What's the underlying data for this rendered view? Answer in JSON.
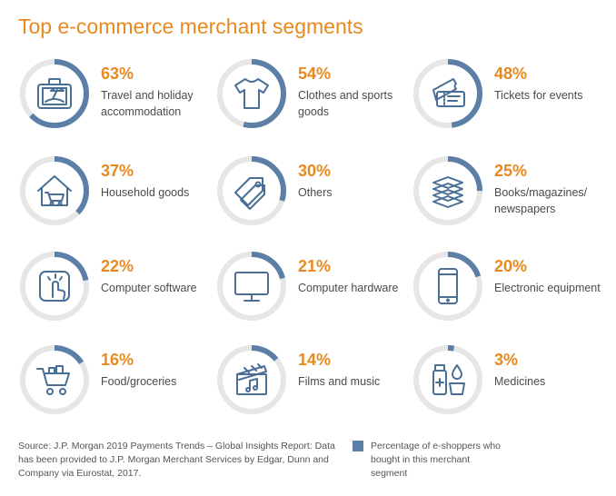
{
  "title": "Top e-commerce merchant segments",
  "colors": {
    "accent": "#e8891f",
    "ring_fill": "#5b7fa6",
    "ring_track": "#e6e6e6",
    "icon": "#4a6f96"
  },
  "chart_data": {
    "type": "pie",
    "title": "Top e-commerce merchant segments",
    "unit": "%",
    "segments": [
      {
        "value": 63,
        "label": "63%",
        "name": "Travel and holiday accommodation",
        "icon": "suitcase-icon"
      },
      {
        "value": 54,
        "label": "54%",
        "name": "Clothes and sports goods",
        "icon": "tshirt-icon"
      },
      {
        "value": 48,
        "label": "48%",
        "name": "Tickets for events",
        "icon": "ticket-icon"
      },
      {
        "value": 37,
        "label": "37%",
        "name": "Household goods",
        "icon": "house-cart-icon"
      },
      {
        "value": 30,
        "label": "30%",
        "name": "Others",
        "icon": "price-tag-icon"
      },
      {
        "value": 25,
        "label": "25%",
        "name": "Books/magazines/ newspapers",
        "icon": "books-icon"
      },
      {
        "value": 22,
        "label": "22%",
        "name": "Computer software",
        "icon": "touch-tap-icon"
      },
      {
        "value": 21,
        "label": "21%",
        "name": "Computer hardware",
        "icon": "monitor-icon"
      },
      {
        "value": 20,
        "label": "20%",
        "name": "Electronic equipment",
        "icon": "smartphone-icon"
      },
      {
        "value": 16,
        "label": "16%",
        "name": "Food/groceries",
        "icon": "shopping-cart-icon"
      },
      {
        "value": 14,
        "label": "14%",
        "name": "Films and music",
        "icon": "film-music-icon"
      },
      {
        "value": 3,
        "label": "3%",
        "name": "Medicines",
        "icon": "medicine-icon"
      }
    ],
    "legend": "Percentage of e-shoppers who bought in this merchant segment"
  },
  "source": "Source: J.P. Morgan 2019 Payments Trends – Global Insights Report: Data has been provided to J.P. Morgan Merchant Services by Edgar, Dunn and Company via Eurostat, 2017."
}
